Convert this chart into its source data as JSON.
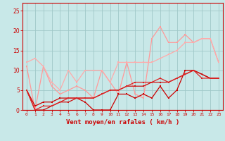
{
  "xlabel": "Vent moyen/en rafales ( km/h )",
  "x": [
    0,
    1,
    2,
    3,
    4,
    5,
    6,
    7,
    8,
    9,
    10,
    11,
    12,
    13,
    14,
    15,
    16,
    17,
    18,
    19,
    20,
    21,
    22,
    23
  ],
  "line1": [
    11,
    0,
    11,
    6,
    4,
    5,
    6,
    5,
    3,
    10,
    null,
    4,
    12,
    4,
    3,
    18,
    21,
    17,
    17,
    19,
    17,
    18,
    18,
    12
  ],
  "line2": [
    12,
    13,
    11,
    7,
    5,
    10,
    7,
    10,
    10,
    10,
    7,
    12,
    12,
    12,
    12,
    12,
    13,
    14,
    15,
    17,
    17,
    18,
    18,
    12
  ],
  "line3": [
    5,
    1,
    2,
    2,
    3,
    3,
    3,
    2,
    0,
    0,
    0,
    4,
    4,
    3,
    4,
    3,
    6,
    3,
    5,
    10,
    10,
    9,
    8,
    8
  ],
  "line4": [
    5,
    0,
    0,
    1,
    2,
    2,
    3,
    3,
    3,
    4,
    5,
    5,
    6,
    6,
    6,
    7,
    7,
    7,
    8,
    9,
    10,
    9,
    8,
    8
  ],
  "line5": [
    5,
    0,
    1,
    1,
    2,
    3,
    3,
    3,
    3,
    4,
    5,
    5,
    6,
    7,
    7,
    7,
    8,
    7,
    8,
    9,
    10,
    8,
    8,
    8
  ],
  "bg_color": "#c8e8e8",
  "grid_color": "#a0c8c8",
  "line1_color": "#ff9999",
  "line2_color": "#ffaaaa",
  "line3_color": "#cc0000",
  "line4_color": "#cc1111",
  "line5_color": "#dd2222",
  "ylim": [
    0,
    27
  ],
  "yticks": [
    0,
    5,
    10,
    15,
    20,
    25
  ],
  "tick_color": "#cc0000",
  "label_color": "#cc0000",
  "spine_color": "#cc0000"
}
